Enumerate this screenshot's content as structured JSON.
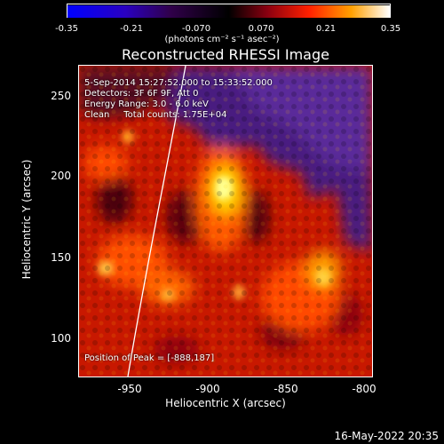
{
  "colorbar": {
    "ticks": [
      "-0.35",
      "-0.21",
      "-0.070",
      "0.070",
      "0.21",
      "0.35"
    ],
    "units": "(photons cm⁻² s⁻¹ asec⁻²)"
  },
  "title": "Reconstructed RHESSI Image",
  "info": {
    "time": "5-Sep-2014 15:27:52.000 to 15:33:52.000",
    "detectors": "Detectors: 3F 6F 9F, Att 0",
    "energy": "Energy Range: 3.0 - 6.0 keV",
    "clean": "Clean     Total counts: 1.75E+04",
    "peak": "Position of Peak = [-888,187]"
  },
  "axes": {
    "xlabel": "Heliocentric X (arcsec)",
    "ylabel": "Heliocentric Y (arcsec)",
    "xticks": [
      "-950",
      "-900",
      "-850",
      "-800"
    ],
    "yticks": [
      "250",
      "200",
      "150",
      "100"
    ],
    "xlim": [
      -985,
      -795
    ],
    "ylim": [
      75,
      270
    ]
  },
  "footer": "16-May-2022 20:35"
}
